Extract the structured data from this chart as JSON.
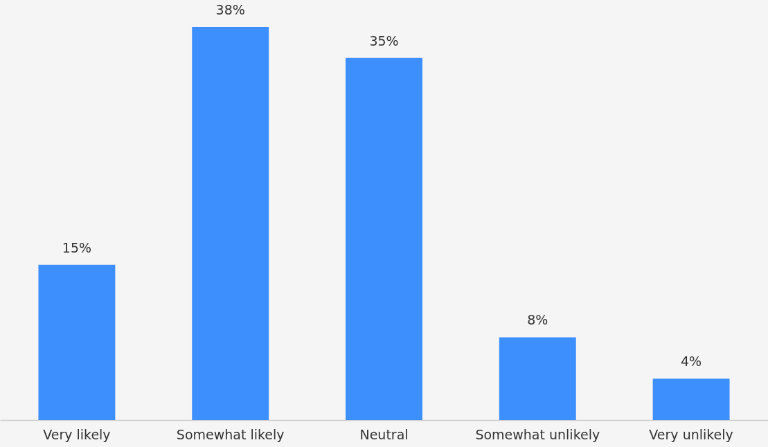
{
  "chart_data": {
    "type": "bar",
    "categories": [
      "Very likely",
      "Somewhat likely",
      "Neutral",
      "Somewhat unlikely",
      "Very unlikely"
    ],
    "values": [
      15,
      38,
      35,
      8,
      4
    ],
    "value_labels": [
      "15%",
      "38%",
      "35%",
      "8%",
      "4%"
    ],
    "color": "#3d8ffe"
  }
}
